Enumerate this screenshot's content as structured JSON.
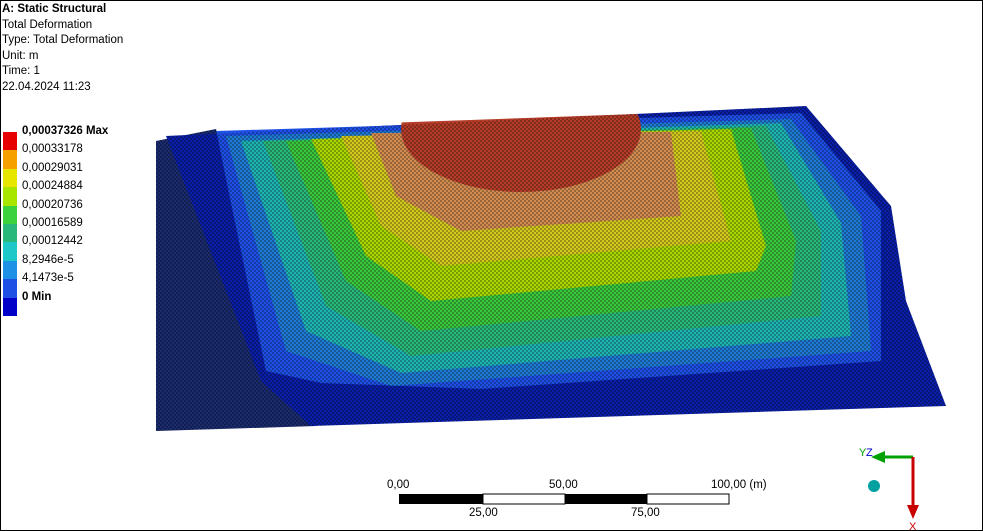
{
  "header": {
    "title": "A: Static Structural",
    "result_name": "Total Deformation",
    "type_line": "Type: Total Deformation",
    "unit_line": "Unit: m",
    "time_line": "Time: 1",
    "date_line": "22.04.2024 11:23"
  },
  "legend": {
    "items": [
      {
        "label": "0,00037326 Max",
        "color": "#e60000",
        "bold": true
      },
      {
        "label": "0,00033178",
        "color": "#f5a000",
        "bold": false
      },
      {
        "label": "0,00029031",
        "color": "#e6e600",
        "bold": false
      },
      {
        "label": "0,00024884",
        "color": "#a8e600",
        "bold": false
      },
      {
        "label": "0,00020736",
        "color": "#3cd23c",
        "bold": false
      },
      {
        "label": "0,00016589",
        "color": "#2ab87a",
        "bold": false
      },
      {
        "label": "0,00012442",
        "color": "#1ec8c8",
        "bold": false
      },
      {
        "label": "8,2946e-5",
        "color": "#1e90e6",
        "bold": false
      },
      {
        "label": "4,1473e-5",
        "color": "#1e50e6",
        "bold": false
      },
      {
        "label": "0 Min",
        "color": "#0000c8",
        "bold": true
      }
    ]
  },
  "scale_bar": {
    "top_labels": [
      "0,00",
      "50,00",
      "100,00 (m)"
    ],
    "bottom_labels": [
      "25,00",
      "75,00"
    ]
  },
  "triad": {
    "y_label": "Y",
    "z_label": "Z",
    "x_label": "X",
    "colors": {
      "y": "#00a000",
      "z": "#0000c8",
      "x": "#c80000",
      "iso": "#00a0a0"
    }
  }
}
